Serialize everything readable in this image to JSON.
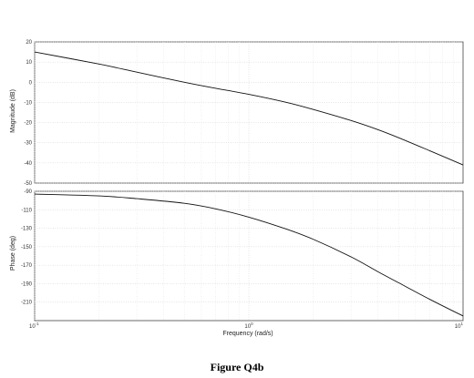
{
  "caption": "Figure Q4b",
  "chart_data": [
    {
      "type": "line",
      "panel": "magnitude",
      "ylabel": "Magnitude (dB)",
      "xscale": "log",
      "xlim": [
        0.1,
        10
      ],
      "ylim": [
        -50,
        20
      ],
      "yticks": [
        20,
        10,
        0,
        -10,
        -20,
        -30,
        -40,
        -50
      ],
      "ytick_labels": [
        "20",
        "10",
        "0",
        "-10",
        "-20",
        "-30",
        "-40",
        "-50"
      ],
      "grid": true,
      "x": [
        0.1,
        0.2,
        0.3,
        0.5,
        0.7,
        1.0,
        1.5,
        2.0,
        3.0,
        4.0,
        5.0,
        7.0,
        10.0
      ],
      "y": [
        15,
        9,
        5,
        0,
        -3,
        -6,
        -10,
        -13.5,
        -19,
        -23.5,
        -27.5,
        -34,
        -41
      ]
    },
    {
      "type": "line",
      "panel": "phase",
      "ylabel": "Phase (deg)",
      "xlabel": "Frequency  (rad/s)",
      "xscale": "log",
      "xlim": [
        0.1,
        10
      ],
      "ylim": [
        -230,
        -90
      ],
      "yticks": [
        -90,
        -110,
        -130,
        -150,
        -170,
        -190,
        -210
      ],
      "ytick_labels": [
        "-90",
        "-110",
        "-130",
        "-150",
        "-170",
        "-190",
        "-210"
      ],
      "xtick_labels": [
        {
          "base": "10",
          "exp": "-1"
        },
        {
          "base": "10",
          "exp": "0"
        },
        {
          "base": "10",
          "exp": "1"
        }
      ],
      "grid": true,
      "x": [
        0.1,
        0.2,
        0.3,
        0.5,
        0.7,
        1.0,
        1.5,
        2.0,
        3.0,
        4.0,
        5.0,
        7.0,
        10.0
      ],
      "y": [
        -93,
        -95,
        -98,
        -103,
        -109,
        -118,
        -131,
        -142,
        -161,
        -177,
        -189,
        -207,
        -225
      ]
    }
  ]
}
